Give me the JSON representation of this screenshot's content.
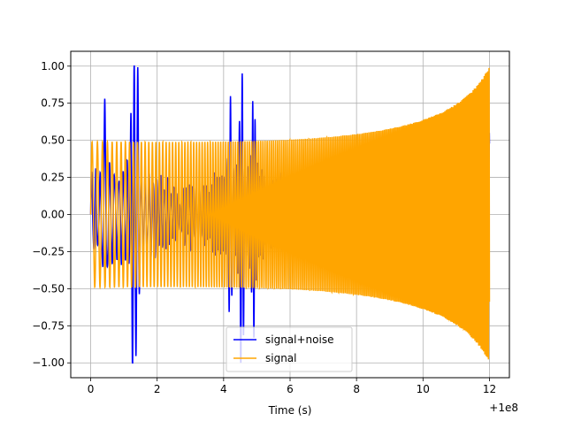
{
  "chart_data": {
    "type": "line",
    "title": "",
    "xlabel": "Time (s)",
    "ylabel": "",
    "x_offset_label": "+1e8",
    "xlim": [
      -0.6,
      12.6
    ],
    "ylim": [
      -1.1,
      1.1
    ],
    "x_ticks": [
      0,
      2,
      4,
      6,
      8,
      10,
      12
    ],
    "x_tick_labels": [
      "0",
      "2",
      "4",
      "6",
      "8",
      "10",
      "12"
    ],
    "y_ticks": [
      -1.0,
      -0.75,
      -0.5,
      -0.25,
      0.0,
      0.25,
      0.5,
      0.75,
      1.0
    ],
    "y_tick_labels": [
      "−1.00",
      "−0.75",
      "−0.50",
      "−0.25",
      "0.00",
      "0.25",
      "0.50",
      "0.75",
      "1.00"
    ],
    "grid": true,
    "legend_position": "lower-center",
    "series": [
      {
        "name": "signal+noise",
        "color": "#0000ff",
        "x_range": [
          0,
          12
        ],
        "peaks": [
          {
            "x": 1.38,
            "y": 1.0
          },
          {
            "x": 1.38,
            "y": -0.97
          },
          {
            "x": 1.3,
            "y": -0.7
          },
          {
            "x": 1.25,
            "y": 0.62
          },
          {
            "x": 0.42,
            "y": 0.54
          },
          {
            "x": 4.55,
            "y": 0.74
          },
          {
            "x": 4.55,
            "y": -0.62
          },
          {
            "x": 4.2,
            "y": 0.57
          },
          {
            "x": 4.9,
            "y": -0.6
          },
          {
            "x": 12.0,
            "y": -0.3
          }
        ]
      },
      {
        "name": "signal",
        "color": "#ffa500",
        "x_range": [
          0,
          12
        ],
        "envelope_start": 0.49,
        "envelope_end": 1.0
      }
    ]
  }
}
